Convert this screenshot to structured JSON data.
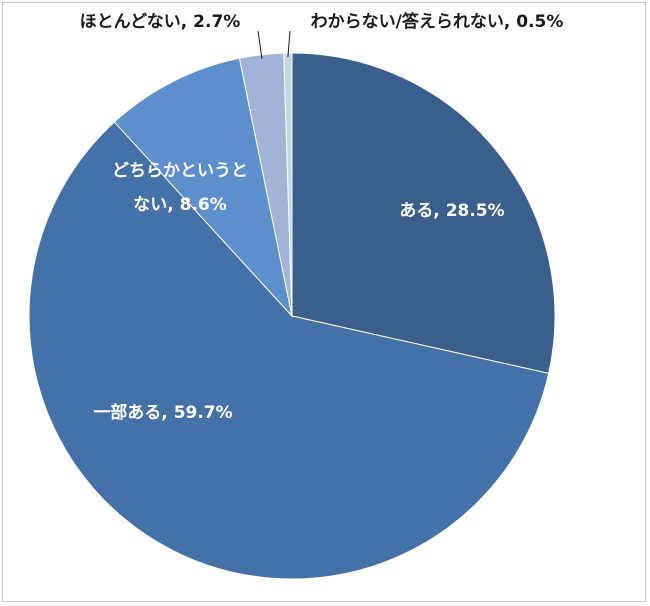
{
  "chart_data": {
    "type": "pie",
    "title": "",
    "slices": [
      {
        "label": "ある",
        "value": 28.5,
        "display": "ある, 28.5%",
        "color": "#3b5f8c"
      },
      {
        "label": "一部ある",
        "value": 59.7,
        "display": "一部ある, 59.7%",
        "color": "#4472a8"
      },
      {
        "label": "どちらかというとない",
        "value": 8.6,
        "display": [
          "どちらかというと",
          "ない, 8.6%"
        ],
        "color": "#5c8fcb"
      },
      {
        "label": "ほとんどない",
        "value": 2.7,
        "display": "ほとんどない, 2.7%",
        "color": "#9fb4d6"
      },
      {
        "label": "わからない/答えられない",
        "value": 0.5,
        "display": "わからない/答えられない, 0.5%",
        "color": "#c6d3e8"
      }
    ],
    "start_angle_deg": 0,
    "direction": "clockwise",
    "legend": "none"
  }
}
